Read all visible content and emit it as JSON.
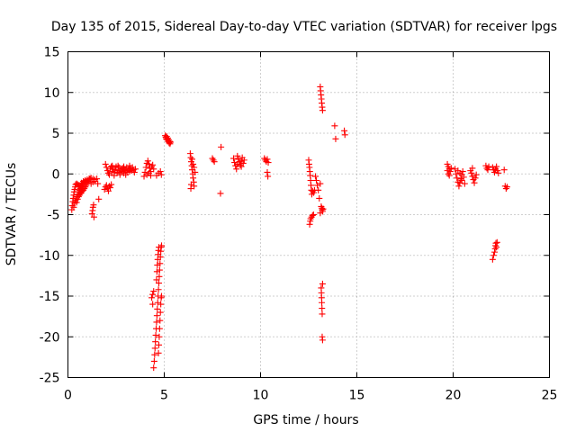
{
  "chart_data": {
    "type": "scatter",
    "title": "Day 135 of 2015, Sidereal Day-to-day VTEC variation (SDTVAR) for receiver lpgs",
    "xlabel": "GPS time / hours",
    "ylabel": "SDTVAR / TECUs",
    "xlim": [
      0,
      25
    ],
    "ylim": [
      -25,
      15
    ],
    "xticks": [
      0,
      5,
      10,
      15,
      20,
      25
    ],
    "yticks": [
      -25,
      -20,
      -15,
      -10,
      -5,
      0,
      5,
      10,
      15
    ],
    "grid": true,
    "marker": "plus",
    "color": "#ff0000",
    "series": [
      {
        "name": "SDTVAR",
        "points": [
          [
            0.2,
            -4.4
          ],
          [
            0.22,
            -3.9
          ],
          [
            0.25,
            -3.4
          ],
          [
            0.27,
            -3.0
          ],
          [
            0.3,
            -2.6
          ],
          [
            0.32,
            -2.2
          ],
          [
            0.35,
            -1.9
          ],
          [
            0.38,
            -1.6
          ],
          [
            0.4,
            -1.3
          ],
          [
            0.45,
            -1.2
          ],
          [
            0.5,
            -1.3
          ],
          [
            0.55,
            -1.4
          ],
          [
            0.6,
            -1.6
          ],
          [
            0.65,
            -1.5
          ],
          [
            0.3,
            -4.1
          ],
          [
            0.35,
            -3.6
          ],
          [
            0.4,
            -3.2
          ],
          [
            0.45,
            -2.8
          ],
          [
            0.5,
            -2.5
          ],
          [
            0.55,
            -2.2
          ],
          [
            0.6,
            -2.0
          ],
          [
            0.65,
            -1.8
          ],
          [
            0.7,
            -1.6
          ],
          [
            0.75,
            -1.4
          ],
          [
            0.8,
            -1.2
          ],
          [
            0.85,
            -1.0
          ],
          [
            0.9,
            -0.9
          ],
          [
            0.45,
            -3.5
          ],
          [
            0.5,
            -3.1
          ],
          [
            0.55,
            -2.8
          ],
          [
            0.6,
            -2.6
          ],
          [
            0.65,
            -2.4
          ],
          [
            0.7,
            -2.3
          ],
          [
            0.75,
            -2.1
          ],
          [
            0.8,
            -2.0
          ],
          [
            0.85,
            -1.8
          ],
          [
            0.9,
            -1.6
          ],
          [
            0.95,
            -1.4
          ],
          [
            1.0,
            -1.1
          ],
          [
            1.05,
            -0.9
          ],
          [
            1.1,
            -0.7
          ],
          [
            1.15,
            -0.6
          ],
          [
            0.7,
            -1.1
          ],
          [
            0.8,
            -0.9
          ],
          [
            0.9,
            -0.8
          ],
          [
            1.0,
            -0.7
          ],
          [
            1.1,
            -0.6
          ],
          [
            1.2,
            -0.5
          ],
          [
            1.3,
            -0.6
          ],
          [
            1.4,
            -0.7
          ],
          [
            1.5,
            -0.6
          ],
          [
            1.2,
            -1.2
          ],
          [
            1.3,
            -1.0
          ],
          [
            1.4,
            -0.9
          ],
          [
            1.25,
            -4.9
          ],
          [
            1.28,
            -4.5
          ],
          [
            1.3,
            -4.1
          ],
          [
            1.33,
            -3.8
          ],
          [
            1.35,
            -5.3
          ],
          [
            1.55,
            -1.2
          ],
          [
            1.6,
            -3.1
          ],
          [
            1.9,
            -1.9
          ],
          [
            1.95,
            -1.6
          ],
          [
            2.0,
            -1.4
          ],
          [
            2.05,
            -1.8
          ],
          [
            2.1,
            -2.1
          ],
          [
            2.15,
            -1.5
          ],
          [
            2.2,
            -1.7
          ],
          [
            2.25,
            -1.3
          ],
          [
            1.95,
            1.2
          ],
          [
            2.0,
            0.8
          ],
          [
            2.05,
            0.4
          ],
          [
            2.1,
            0.1
          ],
          [
            2.15,
            -0.1
          ],
          [
            2.2,
            0.6
          ],
          [
            2.25,
            0.9
          ],
          [
            2.3,
            0.3
          ],
          [
            2.35,
            0.7
          ],
          [
            2.4,
            0.2
          ],
          [
            2.45,
            0.5
          ],
          [
            2.5,
            0.9
          ],
          [
            2.55,
            0.1
          ],
          [
            2.6,
            0.4
          ],
          [
            2.65,
            0.8
          ],
          [
            2.7,
            0.2
          ],
          [
            2.75,
            0.6
          ],
          [
            2.8,
            0.3
          ],
          [
            2.85,
            0.7
          ],
          [
            2.9,
            0.1
          ],
          [
            2.95,
            0.5
          ],
          [
            3.0,
            0.4
          ],
          [
            3.05,
            0.8
          ],
          [
            3.1,
            0.2
          ],
          [
            3.15,
            0.6
          ],
          [
            3.2,
            0.3
          ],
          [
            3.25,
            0.7
          ],
          [
            3.3,
            0.4
          ],
          [
            3.35,
            0.8
          ],
          [
            3.4,
            0.5
          ],
          [
            3.45,
            0.2
          ],
          [
            3.5,
            0.6
          ],
          [
            2.3,
            1.0
          ],
          [
            2.6,
            1.0
          ],
          [
            2.9,
            0.9
          ],
          [
            3.2,
            1.0
          ],
          [
            2.4,
            -0.2
          ],
          [
            2.7,
            -0.1
          ],
          [
            3.0,
            -0.1
          ],
          [
            3.95,
            -0.3
          ],
          [
            4.0,
            0.2
          ],
          [
            4.05,
            0.8
          ],
          [
            4.1,
            1.3
          ],
          [
            4.15,
            1.6
          ],
          [
            4.2,
            1.2
          ],
          [
            4.25,
            0.7
          ],
          [
            4.3,
            0.3
          ],
          [
            4.35,
            0.9
          ],
          [
            4.4,
            1.1
          ],
          [
            4.45,
            0.6
          ],
          [
            4.1,
            -0.1
          ],
          [
            4.2,
            0.1
          ],
          [
            4.3,
            -0.2
          ],
          [
            4.35,
            -15.2
          ],
          [
            4.4,
            -14.8
          ],
          [
            4.45,
            -14.4
          ],
          [
            4.4,
            -16.0
          ],
          [
            4.45,
            -23.8
          ],
          [
            4.48,
            -23.0
          ],
          [
            4.5,
            -22.2
          ],
          [
            4.52,
            -21.4
          ],
          [
            4.54,
            -20.6
          ],
          [
            4.56,
            -19.8
          ],
          [
            4.58,
            -19.0
          ],
          [
            4.6,
            -18.2
          ],
          [
            4.62,
            -17.4
          ],
          [
            4.64,
            -16.6
          ],
          [
            4.66,
            -15.8
          ],
          [
            4.68,
            -15.0
          ],
          [
            4.7,
            -14.2
          ],
          [
            4.72,
            -13.4
          ],
          [
            4.74,
            -12.6
          ],
          [
            4.76,
            -11.8
          ],
          [
            4.78,
            -11.0
          ],
          [
            4.8,
            -10.2
          ],
          [
            4.82,
            -9.5
          ],
          [
            4.84,
            -9.0
          ],
          [
            4.86,
            -8.8
          ],
          [
            4.6,
            -13.0
          ],
          [
            4.62,
            -12.0
          ],
          [
            4.64,
            -11.2
          ],
          [
            4.66,
            -10.5
          ],
          [
            4.68,
            -9.9
          ],
          [
            4.7,
            -9.4
          ],
          [
            4.72,
            -9.0
          ],
          [
            4.7,
            -22.0
          ],
          [
            4.72,
            -21.0
          ],
          [
            4.74,
            -20.0
          ],
          [
            4.76,
            -19.0
          ],
          [
            4.78,
            -18.0
          ],
          [
            4.8,
            -17.0
          ],
          [
            4.82,
            -16.0
          ],
          [
            4.84,
            -15.2
          ],
          [
            4.86,
            -15.0
          ],
          [
            4.6,
            -0.2
          ],
          [
            4.7,
            0.1
          ],
          [
            4.8,
            0.3
          ],
          [
            4.85,
            -0.1
          ],
          [
            5.05,
            4.7
          ],
          [
            5.08,
            4.5
          ],
          [
            5.1,
            4.3
          ],
          [
            5.13,
            4.6
          ],
          [
            5.15,
            4.2
          ],
          [
            5.18,
            4.4
          ],
          [
            5.2,
            4.0
          ],
          [
            5.23,
            4.2
          ],
          [
            5.25,
            3.8
          ],
          [
            5.28,
            4.0
          ],
          [
            5.3,
            3.7
          ],
          [
            5.33,
            3.9
          ],
          [
            6.35,
            2.5
          ],
          [
            6.38,
            2.0
          ],
          [
            6.4,
            1.5
          ],
          [
            6.43,
            1.0
          ],
          [
            6.45,
            0.5
          ],
          [
            6.48,
            0.0
          ],
          [
            6.5,
            -0.5
          ],
          [
            6.53,
            -1.0
          ],
          [
            6.55,
            -1.5
          ],
          [
            6.45,
            1.8
          ],
          [
            6.5,
            1.2
          ],
          [
            6.55,
            0.8
          ],
          [
            6.6,
            0.2
          ],
          [
            6.4,
            -1.3
          ],
          [
            6.38,
            -1.8
          ],
          [
            7.5,
            1.9
          ],
          [
            7.55,
            1.7
          ],
          [
            7.6,
            1.5
          ],
          [
            7.95,
            3.3
          ],
          [
            7.92,
            -2.4
          ],
          [
            8.6,
            1.9
          ],
          [
            8.65,
            1.4
          ],
          [
            8.7,
            1.0
          ],
          [
            8.75,
            0.6
          ],
          [
            8.8,
            1.2
          ],
          [
            8.85,
            1.8
          ],
          [
            8.9,
            1.5
          ],
          [
            8.95,
            1.1
          ],
          [
            9.0,
            1.6
          ],
          [
            9.05,
            2.0
          ],
          [
            9.1,
            1.3
          ],
          [
            9.15,
            1.7
          ],
          [
            8.8,
            2.2
          ],
          [
            9.0,
            0.9
          ],
          [
            10.2,
            1.9
          ],
          [
            10.25,
            1.7
          ],
          [
            10.3,
            1.5
          ],
          [
            10.35,
            1.8
          ],
          [
            10.4,
            1.4
          ],
          [
            10.35,
            0.2
          ],
          [
            10.38,
            -0.3
          ],
          [
            12.5,
            1.7
          ],
          [
            12.52,
            1.2
          ],
          [
            12.54,
            0.8
          ],
          [
            12.56,
            0.3
          ],
          [
            12.58,
            -0.2
          ],
          [
            12.6,
            -0.8
          ],
          [
            12.62,
            -1.4
          ],
          [
            12.64,
            -2.0
          ],
          [
            12.66,
            -2.5
          ],
          [
            12.7,
            -2.1
          ],
          [
            12.75,
            -2.3
          ],
          [
            12.8,
            -2.0
          ],
          [
            12.55,
            -6.2
          ],
          [
            12.58,
            -5.8
          ],
          [
            12.6,
            -5.5
          ],
          [
            12.65,
            -5.3
          ],
          [
            12.7,
            -5.1
          ],
          [
            12.75,
            -5.0
          ],
          [
            12.85,
            -0.3
          ],
          [
            12.9,
            -0.8
          ],
          [
            12.95,
            -1.4
          ],
          [
            13.0,
            -2.0
          ],
          [
            13.05,
            -3.0
          ],
          [
            13.1,
            -1.2
          ],
          [
            13.1,
            10.7
          ],
          [
            13.12,
            10.2
          ],
          [
            13.14,
            9.7
          ],
          [
            13.16,
            9.2
          ],
          [
            13.18,
            8.7
          ],
          [
            13.2,
            8.2
          ],
          [
            13.22,
            7.8
          ],
          [
            13.15,
            -4.0
          ],
          [
            13.18,
            -4.2
          ],
          [
            13.2,
            -4.4
          ],
          [
            13.22,
            -4.6
          ],
          [
            13.25,
            -4.3
          ],
          [
            13.1,
            -4.8
          ],
          [
            13.15,
            -14.0
          ],
          [
            13.16,
            -14.6
          ],
          [
            13.17,
            -15.2
          ],
          [
            13.18,
            -15.8
          ],
          [
            13.19,
            -16.5
          ],
          [
            13.2,
            -17.2
          ],
          [
            13.22,
            -13.5
          ],
          [
            13.2,
            -20.0
          ],
          [
            13.22,
            -20.4
          ],
          [
            13.85,
            5.9
          ],
          [
            13.9,
            4.3
          ],
          [
            14.35,
            5.3
          ],
          [
            14.38,
            4.8
          ],
          [
            19.7,
            1.2
          ],
          [
            19.75,
            0.9
          ],
          [
            19.8,
            0.6
          ],
          [
            19.85,
            0.3
          ],
          [
            19.75,
            0.0
          ],
          [
            19.8,
            -0.2
          ],
          [
            19.9,
            0.7
          ],
          [
            19.7,
            0.4
          ],
          [
            20.1,
            0.6
          ],
          [
            20.15,
            0.0
          ],
          [
            20.2,
            -0.5
          ],
          [
            20.25,
            -1.0
          ],
          [
            20.3,
            -1.5
          ],
          [
            20.35,
            -1.1
          ],
          [
            20.4,
            -0.6
          ],
          [
            20.45,
            -0.1
          ],
          [
            20.5,
            0.3
          ],
          [
            20.55,
            -0.4
          ],
          [
            20.6,
            -1.2
          ],
          [
            20.25,
            0.4
          ],
          [
            20.35,
            0.1
          ],
          [
            20.45,
            -0.8
          ],
          [
            20.9,
            0.4
          ],
          [
            20.95,
            0.1
          ],
          [
            21.0,
            -0.3
          ],
          [
            21.05,
            -0.7
          ],
          [
            21.1,
            -1.1
          ],
          [
            21.15,
            -0.5
          ],
          [
            21.2,
            -0.1
          ],
          [
            21.0,
            0.7
          ],
          [
            21.7,
            1.0
          ],
          [
            21.75,
            0.7
          ],
          [
            21.8,
            0.5
          ],
          [
            21.85,
            0.9
          ],
          [
            22.05,
            0.8
          ],
          [
            22.1,
            0.5
          ],
          [
            22.15,
            0.2
          ],
          [
            22.2,
            0.6
          ],
          [
            22.25,
            0.9
          ],
          [
            22.3,
            0.4
          ],
          [
            22.35,
            0.1
          ],
          [
            22.05,
            -10.5
          ],
          [
            22.1,
            -10.0
          ],
          [
            22.15,
            -9.6
          ],
          [
            22.18,
            -9.2
          ],
          [
            22.2,
            -8.8
          ],
          [
            22.22,
            -8.5
          ],
          [
            22.25,
            -9.0
          ],
          [
            22.28,
            -8.4
          ],
          [
            22.65,
            0.5
          ],
          [
            22.7,
            -1.5
          ],
          [
            22.75,
            -1.8
          ],
          [
            22.8,
            -1.6
          ]
        ]
      }
    ]
  }
}
